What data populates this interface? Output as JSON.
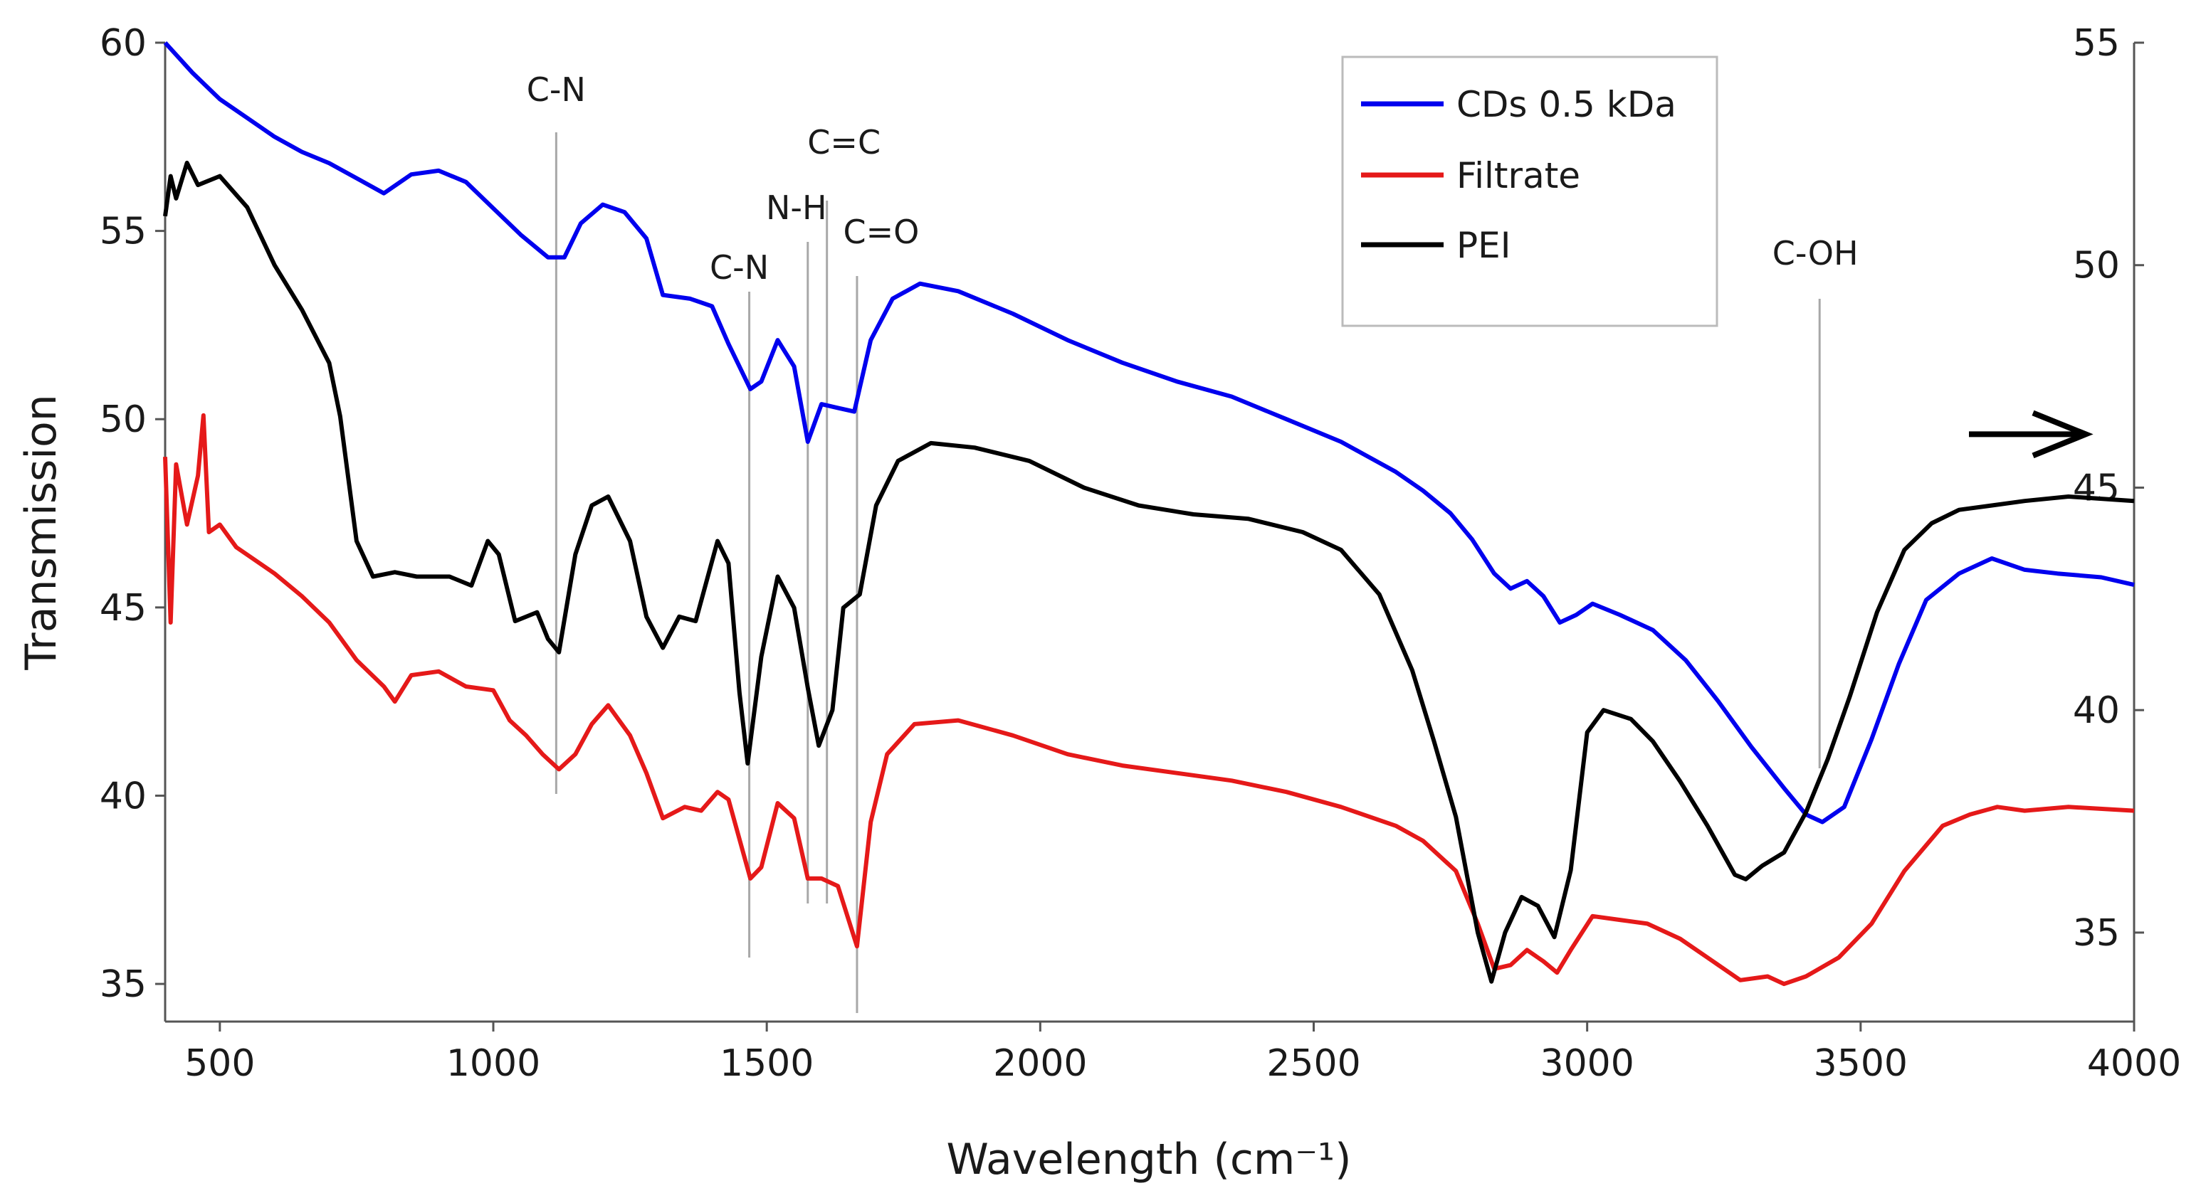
{
  "chart_data": {
    "type": "line",
    "title": "",
    "xlabel": "Wavelength (cm⁻¹)",
    "ylabel": "Transmission",
    "xlim": [
      400,
      4000
    ],
    "ylim": [
      34,
      60
    ],
    "y2lim": [
      33,
      55
    ],
    "grid": false,
    "legend_position": "top-right",
    "x_ticks": [
      "500",
      "1000",
      "1500",
      "2000",
      "2500",
      "3000",
      "3500",
      "4000"
    ],
    "x_tick_values": [
      500,
      1000,
      1500,
      2000,
      2500,
      3000,
      3500,
      4000
    ],
    "y_ticks": [
      "35",
      "40",
      "45",
      "50",
      "55",
      "60"
    ],
    "y_tick_values": [
      35,
      40,
      45,
      50,
      55,
      60
    ],
    "y2_ticks": [
      "35",
      "40",
      "45",
      "50",
      "55"
    ],
    "y2_tick_values": [
      35,
      40,
      45,
      50,
      55
    ],
    "arrow_y2_value": 46.2,
    "series": [
      {
        "name": "CDs 0.5 kDa",
        "color": "#0000ee",
        "axis": "left",
        "points": [
          [
            400,
            60
          ],
          [
            450,
            59.2
          ],
          [
            500,
            58.5
          ],
          [
            550,
            58.0
          ],
          [
            600,
            57.5
          ],
          [
            650,
            57.1
          ],
          [
            700,
            56.8
          ],
          [
            750,
            56.4
          ],
          [
            800,
            56.0
          ],
          [
            850,
            56.5
          ],
          [
            900,
            56.6
          ],
          [
            950,
            56.3
          ],
          [
            1000,
            55.6
          ],
          [
            1050,
            54.9
          ],
          [
            1100,
            54.3
          ],
          [
            1130,
            54.3
          ],
          [
            1160,
            55.2
          ],
          [
            1200,
            55.7
          ],
          [
            1240,
            55.5
          ],
          [
            1280,
            54.8
          ],
          [
            1310,
            53.3
          ],
          [
            1360,
            53.2
          ],
          [
            1400,
            53.0
          ],
          [
            1430,
            52.0
          ],
          [
            1470,
            50.8
          ],
          [
            1490,
            51.0
          ],
          [
            1520,
            52.1
          ],
          [
            1550,
            51.4
          ],
          [
            1575,
            49.4
          ],
          [
            1600,
            50.4
          ],
          [
            1630,
            50.3
          ],
          [
            1660,
            50.2
          ],
          [
            1690,
            52.1
          ],
          [
            1730,
            53.2
          ],
          [
            1780,
            53.6
          ],
          [
            1850,
            53.4
          ],
          [
            1950,
            52.8
          ],
          [
            2050,
            52.1
          ],
          [
            2150,
            51.5
          ],
          [
            2250,
            51.0
          ],
          [
            2350,
            50.6
          ],
          [
            2450,
            50.0
          ],
          [
            2550,
            49.4
          ],
          [
            2650,
            48.6
          ],
          [
            2700,
            48.1
          ],
          [
            2750,
            47.5
          ],
          [
            2790,
            46.8
          ],
          [
            2830,
            45.9
          ],
          [
            2860,
            45.5
          ],
          [
            2890,
            45.7
          ],
          [
            2920,
            45.3
          ],
          [
            2950,
            44.6
          ],
          [
            2980,
            44.8
          ],
          [
            3010,
            45.1
          ],
          [
            3060,
            44.8
          ],
          [
            3120,
            44.4
          ],
          [
            3180,
            43.6
          ],
          [
            3240,
            42.5
          ],
          [
            3300,
            41.3
          ],
          [
            3360,
            40.2
          ],
          [
            3400,
            39.5
          ],
          [
            3430,
            39.3
          ],
          [
            3470,
            39.7
          ],
          [
            3520,
            41.5
          ],
          [
            3570,
            43.5
          ],
          [
            3620,
            45.2
          ],
          [
            3680,
            45.9
          ],
          [
            3740,
            46.3
          ],
          [
            3800,
            46.0
          ],
          [
            3860,
            45.9
          ],
          [
            3940,
            45.8
          ],
          [
            4000,
            45.6
          ]
        ]
      },
      {
        "name": "Filtrate",
        "color": "#e51919",
        "axis": "left",
        "points": [
          [
            400,
            49.0
          ],
          [
            410,
            44.6
          ],
          [
            420,
            48.8
          ],
          [
            440,
            47.2
          ],
          [
            460,
            48.5
          ],
          [
            470,
            50.1
          ],
          [
            480,
            47.0
          ],
          [
            500,
            47.2
          ],
          [
            530,
            46.6
          ],
          [
            600,
            45.9
          ],
          [
            650,
            45.3
          ],
          [
            700,
            44.6
          ],
          [
            750,
            43.6
          ],
          [
            800,
            42.9
          ],
          [
            820,
            42.5
          ],
          [
            850,
            43.2
          ],
          [
            900,
            43.3
          ],
          [
            950,
            42.9
          ],
          [
            1000,
            42.8
          ],
          [
            1030,
            42.0
          ],
          [
            1060,
            41.6
          ],
          [
            1090,
            41.1
          ],
          [
            1120,
            40.7
          ],
          [
            1150,
            41.1
          ],
          [
            1180,
            41.9
          ],
          [
            1210,
            42.4
          ],
          [
            1250,
            41.6
          ],
          [
            1280,
            40.6
          ],
          [
            1310,
            39.4
          ],
          [
            1350,
            39.7
          ],
          [
            1380,
            39.6
          ],
          [
            1410,
            40.1
          ],
          [
            1430,
            39.9
          ],
          [
            1470,
            37.8
          ],
          [
            1490,
            38.1
          ],
          [
            1520,
            39.8
          ],
          [
            1550,
            39.4
          ],
          [
            1575,
            37.8
          ],
          [
            1600,
            37.8
          ],
          [
            1630,
            37.6
          ],
          [
            1665,
            36.0
          ],
          [
            1690,
            39.3
          ],
          [
            1720,
            41.1
          ],
          [
            1770,
            41.9
          ],
          [
            1850,
            42.0
          ],
          [
            1950,
            41.6
          ],
          [
            2050,
            41.1
          ],
          [
            2150,
            40.8
          ],
          [
            2250,
            40.6
          ],
          [
            2350,
            40.4
          ],
          [
            2450,
            40.1
          ],
          [
            2550,
            39.7
          ],
          [
            2650,
            39.2
          ],
          [
            2700,
            38.8
          ],
          [
            2760,
            38.0
          ],
          [
            2800,
            36.6
          ],
          [
            2830,
            35.4
          ],
          [
            2860,
            35.5
          ],
          [
            2890,
            35.9
          ],
          [
            2920,
            35.6
          ],
          [
            2945,
            35.3
          ],
          [
            2970,
            35.9
          ],
          [
            3010,
            36.8
          ],
          [
            3060,
            36.7
          ],
          [
            3110,
            36.6
          ],
          [
            3170,
            36.2
          ],
          [
            3230,
            35.6
          ],
          [
            3280,
            35.1
          ],
          [
            3330,
            35.2
          ],
          [
            3360,
            35.0
          ],
          [
            3400,
            35.2
          ],
          [
            3460,
            35.7
          ],
          [
            3520,
            36.6
          ],
          [
            3580,
            38.0
          ],
          [
            3650,
            39.2
          ],
          [
            3700,
            39.5
          ],
          [
            3750,
            39.7
          ],
          [
            3800,
            39.6
          ],
          [
            3880,
            39.7
          ],
          [
            4000,
            39.6
          ]
        ]
      },
      {
        "name": "PEI",
        "color": "#000000",
        "axis": "right",
        "points": [
          [
            400,
            51.1
          ],
          [
            410,
            52.0
          ],
          [
            420,
            51.5
          ],
          [
            440,
            52.3
          ],
          [
            460,
            51.8
          ],
          [
            500,
            52.0
          ],
          [
            550,
            51.3
          ],
          [
            600,
            50.0
          ],
          [
            650,
            49.0
          ],
          [
            700,
            47.8
          ],
          [
            720,
            46.6
          ],
          [
            750,
            43.8
          ],
          [
            780,
            43.0
          ],
          [
            820,
            43.1
          ],
          [
            860,
            43.0
          ],
          [
            920,
            43.0
          ],
          [
            960,
            42.8
          ],
          [
            990,
            43.8
          ],
          [
            1010,
            43.5
          ],
          [
            1040,
            42.0
          ],
          [
            1080,
            42.2
          ],
          [
            1100,
            41.6
          ],
          [
            1120,
            41.3
          ],
          [
            1150,
            43.5
          ],
          [
            1180,
            44.6
          ],
          [
            1210,
            44.8
          ],
          [
            1250,
            43.8
          ],
          [
            1280,
            42.1
          ],
          [
            1310,
            41.4
          ],
          [
            1340,
            42.1
          ],
          [
            1370,
            42.0
          ],
          [
            1410,
            43.8
          ],
          [
            1430,
            43.3
          ],
          [
            1450,
            40.4
          ],
          [
            1465,
            38.8
          ],
          [
            1490,
            41.2
          ],
          [
            1520,
            43.0
          ],
          [
            1550,
            42.3
          ],
          [
            1575,
            40.5
          ],
          [
            1595,
            39.2
          ],
          [
            1620,
            40.0
          ],
          [
            1640,
            42.3
          ],
          [
            1670,
            42.6
          ],
          [
            1700,
            44.6
          ],
          [
            1740,
            45.6
          ],
          [
            1800,
            46.0
          ],
          [
            1880,
            45.9
          ],
          [
            1980,
            45.6
          ],
          [
            2080,
            45.0
          ],
          [
            2180,
            44.6
          ],
          [
            2280,
            44.4
          ],
          [
            2380,
            44.3
          ],
          [
            2480,
            44.0
          ],
          [
            2550,
            43.6
          ],
          [
            2620,
            42.6
          ],
          [
            2680,
            40.9
          ],
          [
            2720,
            39.3
          ],
          [
            2760,
            37.6
          ],
          [
            2800,
            35.0
          ],
          [
            2825,
            33.9
          ],
          [
            2850,
            35.0
          ],
          [
            2880,
            35.8
          ],
          [
            2910,
            35.6
          ],
          [
            2940,
            34.9
          ],
          [
            2970,
            36.4
          ],
          [
            3000,
            39.5
          ],
          [
            3030,
            40.0
          ],
          [
            3080,
            39.8
          ],
          [
            3120,
            39.3
          ],
          [
            3170,
            38.4
          ],
          [
            3220,
            37.4
          ],
          [
            3270,
            36.3
          ],
          [
            3290,
            36.2
          ],
          [
            3320,
            36.5
          ],
          [
            3360,
            36.8
          ],
          [
            3400,
            37.7
          ],
          [
            3440,
            38.9
          ],
          [
            3480,
            40.3
          ],
          [
            3530,
            42.2
          ],
          [
            3580,
            43.6
          ],
          [
            3630,
            44.2
          ],
          [
            3680,
            44.5
          ],
          [
            3740,
            44.6
          ],
          [
            3800,
            44.7
          ],
          [
            3880,
            44.8
          ],
          [
            4000,
            44.7
          ]
        ]
      }
    ],
    "annotations": [
      {
        "label": "C-N",
        "x": 1115
      },
      {
        "label": "C-N",
        "x": 1468
      },
      {
        "label": "N-H",
        "x": 1575
      },
      {
        "label": "C=C",
        "x": 1610
      },
      {
        "label": "C=O",
        "x": 1665
      },
      {
        "label": "C-OH",
        "x": 3425
      }
    ]
  }
}
